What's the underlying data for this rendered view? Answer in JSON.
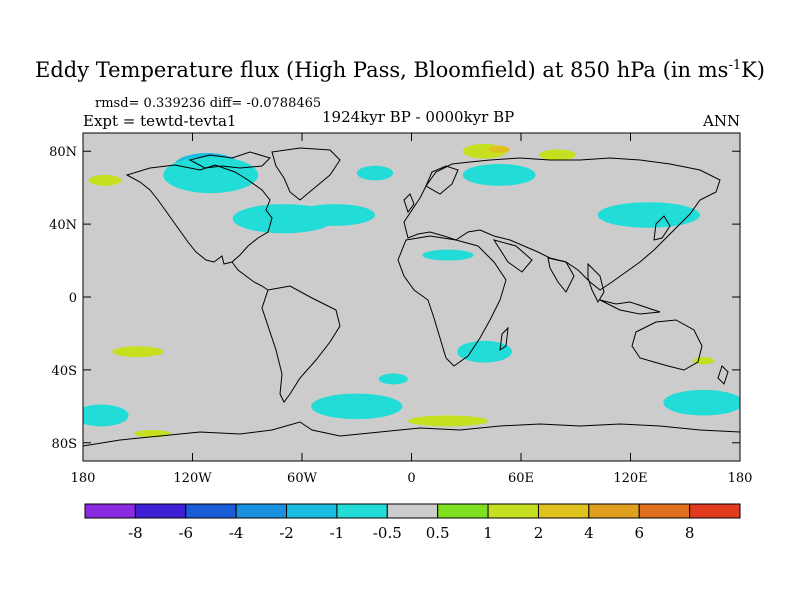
{
  "title": "Eddy Temperature flux (High Pass, Bloomfield) at 850 hPa (in ms",
  "title_sup": "-1",
  "title_end": "K)",
  "stats": "rmsd= 0.339236 diff= -0.0788465",
  "experiment": "Expt = tewtd-tevta1",
  "period": "1924kyr BP - 0000kyr BP",
  "season": "ANN",
  "map": {
    "lon_range": [
      -180,
      180
    ],
    "lat_range": [
      -90,
      90
    ],
    "lon_ticks": [
      {
        "value": -180,
        "label": "180"
      },
      {
        "value": -120,
        "label": "120W"
      },
      {
        "value": -60,
        "label": "60W"
      },
      {
        "value": 0,
        "label": "0"
      },
      {
        "value": 60,
        "label": "60E"
      },
      {
        "value": 120,
        "label": "120E"
      },
      {
        "value": 180,
        "label": "180"
      }
    ],
    "lat_ticks": [
      {
        "value": 80,
        "label": "80N"
      },
      {
        "value": 40,
        "label": "40N"
      },
      {
        "value": 0,
        "label": "0"
      },
      {
        "value": -40,
        "label": "40S"
      },
      {
        "value": -80,
        "label": "80S"
      }
    ],
    "background_color": "#cccccc",
    "regions": [
      {
        "bin": "-2",
        "lon": -112,
        "lat": 72,
        "rlon": 18,
        "rlat": 7
      },
      {
        "bin": "-1",
        "lon": -110,
        "lat": 67,
        "rlon": 26,
        "rlat": 10
      },
      {
        "bin": "-1",
        "lon": -70,
        "lat": 43,
        "rlon": 28,
        "rlat": 8
      },
      {
        "bin": "-1",
        "lon": -42,
        "lat": 45,
        "rlon": 22,
        "rlat": 6
      },
      {
        "bin": "-1",
        "lon": -20,
        "lat": 68,
        "rlon": 10,
        "rlat": 4
      },
      {
        "bin": "-1",
        "lon": 48,
        "lat": 67,
        "rlon": 20,
        "rlat": 6
      },
      {
        "bin": "-1",
        "lon": 20,
        "lat": 23,
        "rlon": 14,
        "rlat": 3
      },
      {
        "bin": "-1",
        "lon": 130,
        "lat": 45,
        "rlon": 28,
        "rlat": 7
      },
      {
        "bin": "-1",
        "lon": 40,
        "lat": -30,
        "rlon": 15,
        "rlat": 6
      },
      {
        "bin": "-1",
        "lon": -170,
        "lat": -65,
        "rlon": 15,
        "rlat": 6
      },
      {
        "bin": "-1",
        "lon": -30,
        "lat": -60,
        "rlon": 25,
        "rlat": 7
      },
      {
        "bin": "-1",
        "lon": 160,
        "lat": -58,
        "rlon": 22,
        "rlat": 7
      },
      {
        "bin": "-1",
        "lon": -10,
        "lat": -45,
        "rlon": 8,
        "rlat": 3
      },
      {
        "bin": "1",
        "lon": 40,
        "lat": 80,
        "rlon": 12,
        "rlat": 4
      },
      {
        "bin": "1",
        "lon": 80,
        "lat": 78,
        "rlon": 10,
        "rlat": 3
      },
      {
        "bin": "1",
        "lon": -168,
        "lat": 64,
        "rlon": 9,
        "rlat": 3
      },
      {
        "bin": "1",
        "lon": -150,
        "lat": -30,
        "rlon": 14,
        "rlat": 3
      },
      {
        "bin": "1",
        "lon": 20,
        "lat": -68,
        "rlon": 22,
        "rlat": 3
      },
      {
        "bin": "1",
        "lon": 160,
        "lat": -35,
        "rlon": 6,
        "rlat": 2
      },
      {
        "bin": "1",
        "lon": -142,
        "lat": -75,
        "rlon": 10,
        "rlat": 2
      },
      {
        "bin": "2",
        "lon": 48,
        "lat": 81,
        "rlon": 6,
        "rlat": 2
      }
    ]
  },
  "colorbar": {
    "bins": [
      {
        "key": "lt-8",
        "color": "#8a2be2"
      },
      {
        "key": "-8",
        "color": "#3f1fd6"
      },
      {
        "key": "-6",
        "color": "#1a5bd6"
      },
      {
        "key": "-4",
        "color": "#1991e0"
      },
      {
        "key": "-2",
        "color": "#19bde0"
      },
      {
        "key": "-1",
        "color": "#22dcd8"
      },
      {
        "key": "-0.5",
        "color": "#cccccc"
      },
      {
        "key": "0.5",
        "color": "#7ee01f"
      },
      {
        "key": "1",
        "color": "#c6e01f"
      },
      {
        "key": "2",
        "color": "#e0c21f"
      },
      {
        "key": "4",
        "color": "#e0a01f"
      },
      {
        "key": "6",
        "color": "#e0701f"
      },
      {
        "key": "8",
        "color": "#e03a1f"
      }
    ],
    "labels": [
      "-8",
      "-6",
      "-4",
      "-2",
      "-1",
      "-0.5",
      "0.5",
      "1",
      "2",
      "4",
      "6",
      "8"
    ]
  }
}
